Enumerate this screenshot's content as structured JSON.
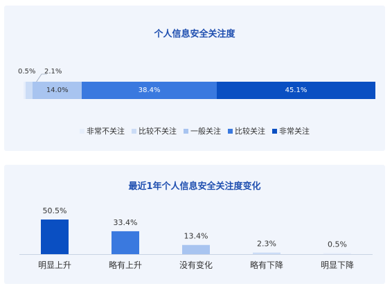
{
  "colors": {
    "very_concerned": "#0a4fc2",
    "fairly_concerned": "#3a79df",
    "neutral": "#a8c4f0",
    "not_very_concerned": "#cbdcf6",
    "not_concerned": "#e6eefb",
    "panel_bg": "#f1f5fc",
    "title": "#1f4fb0"
  },
  "chart_data": [
    {
      "type": "bar",
      "stacked": true,
      "orientation": "horizontal",
      "title": "个人信息安全关注度",
      "categories": [
        "非常不关注",
        "比较不关注",
        "一般关注",
        "比较关注",
        "非常关注"
      ],
      "values": [
        0.5,
        2.1,
        14.0,
        38.4,
        45.1
      ],
      "labels": [
        "0.5%",
        "2.1%",
        "14.0%",
        "38.4%",
        "45.1%"
      ],
      "legend": [
        "非常不关注",
        "比较不关注",
        "一般关注",
        "比较关注",
        "非常关注"
      ],
      "legend_position": "bottom",
      "colors": [
        "#e6eefb",
        "#cbdcf6",
        "#a8c4f0",
        "#3a79df",
        "#0a4fc2"
      ]
    },
    {
      "type": "bar",
      "title": "最近1年个人信息安全关注度变化",
      "categories": [
        "明显上升",
        "略有上升",
        "没有变化",
        "略有下降",
        "明显下降"
      ],
      "values": [
        50.5,
        33.4,
        13.4,
        2.3,
        0.5
      ],
      "labels": [
        "50.5%",
        "33.4%",
        "13.4%",
        "2.3%",
        "0.5%"
      ],
      "colors": [
        "#0a4fc2",
        "#3a79df",
        "#a8c4f0",
        "#cbdcf6",
        "#e6eefb"
      ],
      "ylim": [
        0,
        55
      ]
    }
  ]
}
